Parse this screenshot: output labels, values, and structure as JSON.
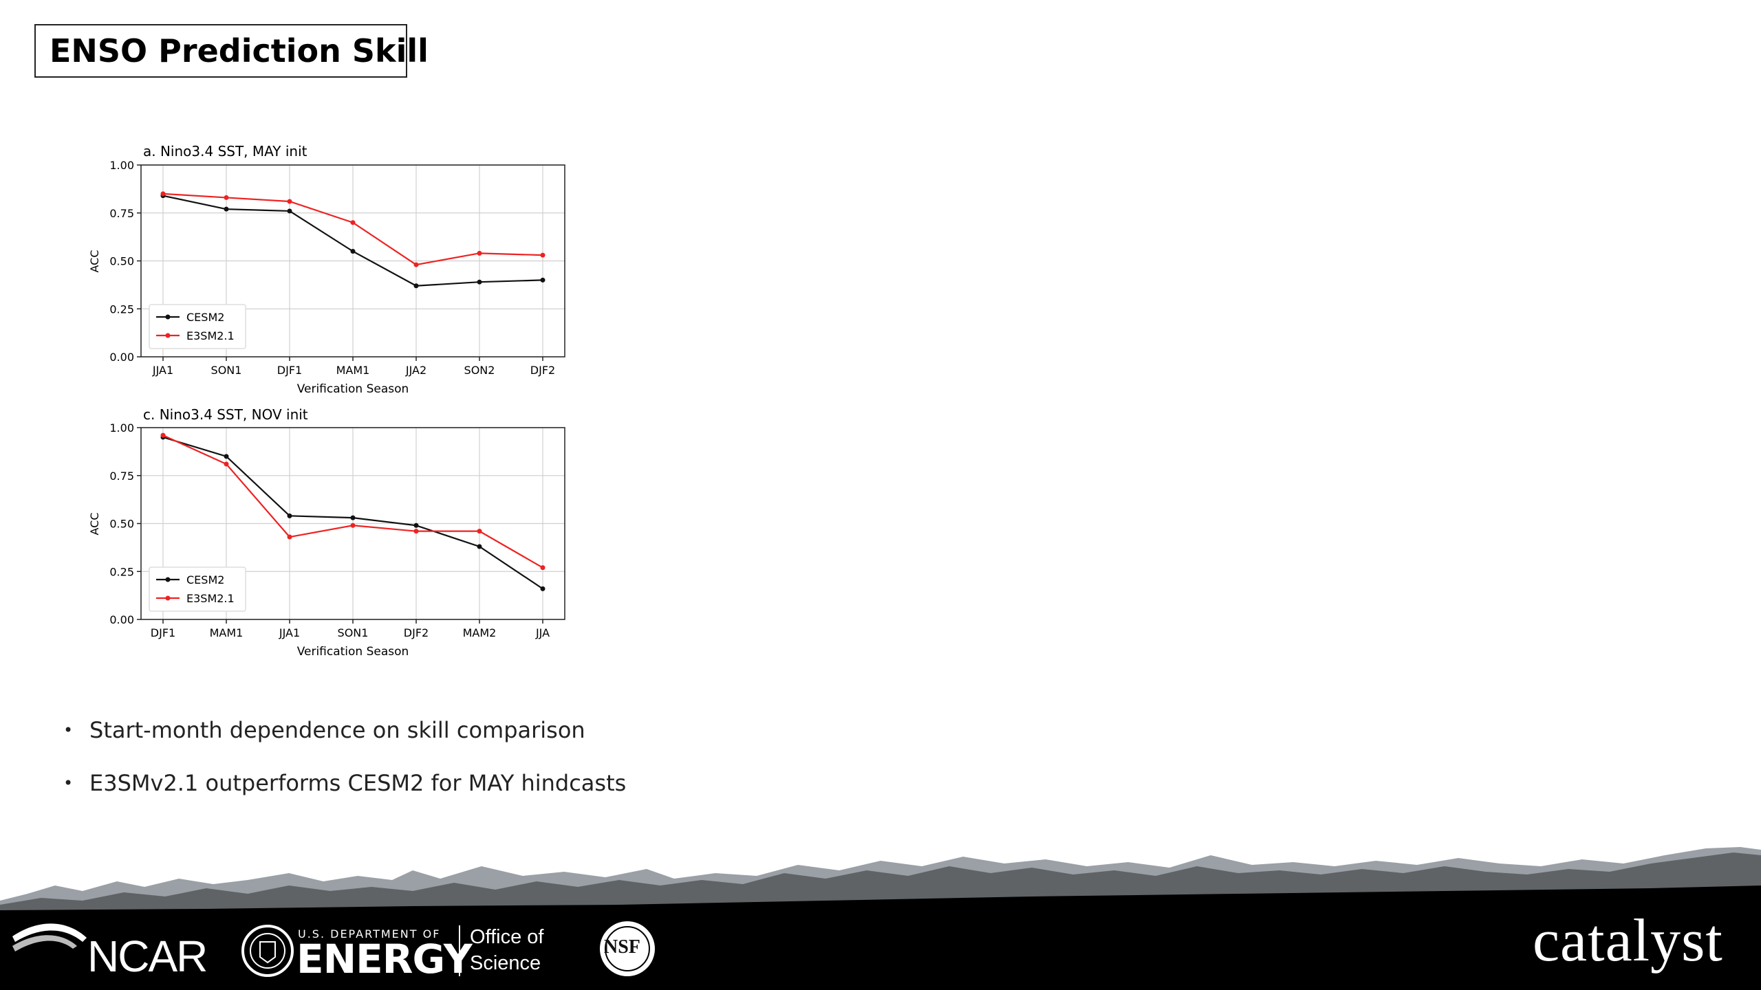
{
  "slide": {
    "title": "ENSO Prediction Skill",
    "bullets": [
      "Start-month dependence on skill comparison",
      "E3SMv2.1 outperforms CESM2 for MAY hindcasts"
    ]
  },
  "colors": {
    "cesm2": "#111111",
    "e3sm": "#ee2222",
    "grid": "#d0d0d0"
  },
  "chart_data": [
    {
      "type": "line",
      "title": "a. Nino3.4 SST, MAY init",
      "xlabel": "Verification Season",
      "ylabel": "ACC",
      "ylim": [
        0,
        1
      ],
      "yticks": [
        "0.00",
        "0.25",
        "0.50",
        "0.75",
        "1.00"
      ],
      "ytick_values": [
        0,
        0.25,
        0.5,
        0.75,
        1.0
      ],
      "categories": [
        "JJA1",
        "SON1",
        "DJF1",
        "MAM1",
        "JJA2",
        "SON2",
        "DJF2"
      ],
      "grid": true,
      "legend": "lower-left",
      "series": [
        {
          "name": "CESM2",
          "values": [
            0.84,
            0.77,
            0.76,
            0.55,
            0.37,
            0.39,
            0.4
          ]
        },
        {
          "name": "E3SM2.1",
          "values": [
            0.85,
            0.83,
            0.81,
            0.7,
            0.48,
            0.54,
            0.53
          ]
        }
      ]
    },
    {
      "type": "line",
      "title": "c. Nino3.4 SST, NOV init",
      "xlabel": "Verification Season",
      "ylabel": "ACC",
      "ylim": [
        0,
        1
      ],
      "yticks": [
        "0.00",
        "0.25",
        "0.50",
        "0.75",
        "1.00"
      ],
      "ytick_values": [
        0,
        0.25,
        0.5,
        0.75,
        1.0
      ],
      "categories": [
        "DJF1",
        "MAM1",
        "JJA1",
        "SON1",
        "DJF2",
        "MAM2",
        "JJA"
      ],
      "grid": true,
      "legend": "lower-left",
      "series": [
        {
          "name": "CESM2",
          "values": [
            0.95,
            0.85,
            0.54,
            0.53,
            0.49,
            0.38,
            0.16
          ]
        },
        {
          "name": "E3SM2.1",
          "values": [
            0.96,
            0.81,
            0.43,
            0.49,
            0.46,
            0.46,
            0.27
          ]
        }
      ]
    }
  ],
  "footer": {
    "logos": {
      "ncar": "NCAR",
      "doe_small": "U.S. DEPARTMENT OF",
      "doe_big": "ENERGY",
      "office_line1": "Office of",
      "office_line2": "Science",
      "nsf": "NSF",
      "catalyst": "catalyst"
    },
    "icons": [
      "ncar-swoosh-icon",
      "doe-seal-icon",
      "nsf-globe-icon",
      "mountain-silhouette"
    ]
  }
}
